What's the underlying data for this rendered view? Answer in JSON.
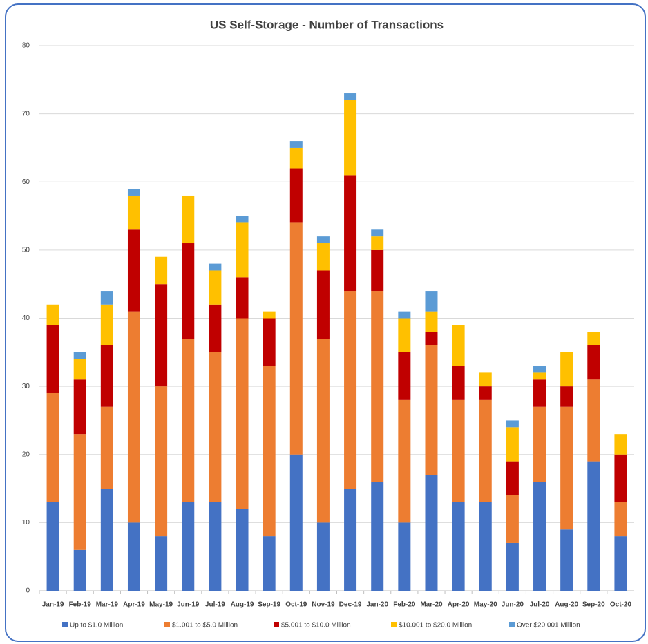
{
  "chart_data": {
    "type": "bar",
    "stacked": true,
    "title": "US Self-Storage - Number of Transactions",
    "categories": [
      "Jan-19",
      "Feb-19",
      "Mar-19",
      "Apr-19",
      "May-19",
      "Jun-19",
      "Jul-19",
      "Aug-19",
      "Sep-19",
      "Oct-19",
      "Nov-19",
      "Dec-19",
      "Jan-20",
      "Feb-20",
      "Mar-20",
      "Apr-20",
      "May-20",
      "Jun-20",
      "Jul-20",
      "Aug-20",
      "Sep-20",
      "Oct-20"
    ],
    "series": [
      {
        "name": "Up to $1.0 Million",
        "color": "#4472c4",
        "values": [
          13,
          6,
          15,
          10,
          8,
          13,
          13,
          12,
          8,
          20,
          10,
          15,
          16,
          10,
          17,
          13,
          13,
          7,
          16,
          9,
          19,
          8
        ]
      },
      {
        "name": "$1.001 to $5.0 Million",
        "color": "#ed7d31",
        "values": [
          16,
          17,
          12,
          31,
          22,
          24,
          22,
          28,
          25,
          34,
          27,
          29,
          28,
          18,
          19,
          15,
          15,
          7,
          11,
          18,
          12,
          5
        ]
      },
      {
        "name": "$5.001 to $10.0 Million",
        "color": "#c00000",
        "values": [
          10,
          8,
          9,
          12,
          15,
          14,
          7,
          6,
          7,
          8,
          10,
          17,
          6,
          7,
          2,
          5,
          2,
          5,
          4,
          3,
          5,
          7
        ]
      },
      {
        "name": "$10.001 to $20.0 Million",
        "color": "#ffc000",
        "values": [
          3,
          3,
          6,
          5,
          4,
          7,
          5,
          8,
          1,
          3,
          4,
          11,
          2,
          5,
          3,
          6,
          2,
          5,
          1,
          5,
          2,
          3
        ]
      },
      {
        "name": "Over $20.001 Million",
        "color": "#5b9bd5",
        "values": [
          0,
          1,
          2,
          1,
          0,
          0,
          1,
          1,
          0,
          1,
          1,
          1,
          1,
          1,
          3,
          0,
          0,
          1,
          1,
          0,
          0,
          0
        ]
      }
    ],
    "ylim": [
      0,
      80
    ],
    "yticks": [
      0,
      10,
      20,
      30,
      40,
      50,
      60,
      70,
      80
    ],
    "grid": true,
    "legend": "bottom"
  }
}
